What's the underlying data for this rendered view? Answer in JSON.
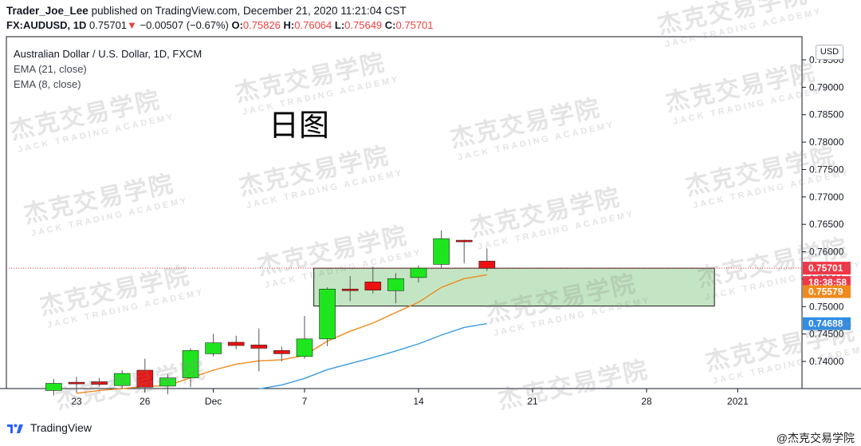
{
  "header": {
    "author": "Trader_Joe_Lee",
    "published_text": "published on TradingView.com, December 21, 2020 11:21:04 CST",
    "symbol": "FX:AUDUSD, 1D",
    "last": "0.75701",
    "change": "−0.00507 (−0.67%)",
    "o_label": "O:",
    "o": "0.75826",
    "h_label": "H:",
    "h": "0.76064",
    "l_label": "L:",
    "l": "0.75649",
    "c_label": "C:",
    "c": "0.75701"
  },
  "legend": {
    "main": "Australian Dollar / U.S. Dollar, 1D, FXCM",
    "ema21": "EMA (21, close)",
    "ema8": "EMA (8, close)"
  },
  "annotation": "日图",
  "currency": "USD",
  "price_tags": {
    "last": "0.75701",
    "countdown": "18:38:58",
    "ema8": "0.75579",
    "ema21": "0.74688"
  },
  "footer": {
    "brand": "TradingView",
    "credit": "@杰克交易学院"
  },
  "watermark": {
    "cn": "杰克交易学院",
    "en": "JACK TRADING ACADEMY"
  },
  "colors": {
    "up": "#1ee61e",
    "down": "#ee1111",
    "ema8": "#f0891c",
    "ema21": "#3a9be0",
    "zone_fill": "#b9e0b9",
    "zone_border": "#1a1a1a",
    "tag_red": "#f23645",
    "tag_orange": "#f0891c",
    "tag_blue": "#2f8de4",
    "tick": "#131722"
  },
  "chart_data": {
    "type": "candlestick",
    "y_ticks": [
      "0.79500",
      "0.79000",
      "0.78500",
      "0.78000",
      "0.77500",
      "0.77000",
      "0.76500",
      "0.76000",
      "0.75500",
      "0.75000",
      "0.74500",
      "0.74000"
    ],
    "x_ticks": [
      "23",
      "26",
      "Dec",
      "7",
      "14",
      "21",
      "28",
      "2021"
    ],
    "ylim": [
      0.7355,
      0.7965
    ],
    "candles": [
      {
        "date": "2020-11-20",
        "o": 0.7347,
        "h": 0.7368,
        "l": 0.7338,
        "c": 0.736
      },
      {
        "date": "2020-11-23",
        "o": 0.7362,
        "h": 0.7372,
        "l": 0.7344,
        "c": 0.736
      },
      {
        "date": "2020-11-24",
        "o": 0.7363,
        "h": 0.737,
        "l": 0.7354,
        "c": 0.7358
      },
      {
        "date": "2020-11-25",
        "o": 0.7356,
        "h": 0.7384,
        "l": 0.735,
        "c": 0.7378
      },
      {
        "date": "2020-11-26",
        "o": 0.7384,
        "h": 0.7405,
        "l": 0.7349,
        "c": 0.7353
      },
      {
        "date": "2020-11-27",
        "o": 0.7355,
        "h": 0.7377,
        "l": 0.734,
        "c": 0.737
      },
      {
        "date": "2020-11-30",
        "o": 0.737,
        "h": 0.7424,
        "l": 0.7353,
        "c": 0.742
      },
      {
        "date": "2020-12-01",
        "o": 0.7414,
        "h": 0.745,
        "l": 0.7409,
        "c": 0.7434
      },
      {
        "date": "2020-12-02",
        "o": 0.7435,
        "h": 0.7447,
        "l": 0.7422,
        "c": 0.7429
      },
      {
        "date": "2020-12-03",
        "o": 0.743,
        "h": 0.746,
        "l": 0.7382,
        "c": 0.7424
      },
      {
        "date": "2020-12-04",
        "o": 0.742,
        "h": 0.7427,
        "l": 0.74,
        "c": 0.7414
      },
      {
        "date": "2020-12-07",
        "o": 0.7409,
        "h": 0.7483,
        "l": 0.7405,
        "c": 0.7441
      },
      {
        "date": "2020-12-08",
        "o": 0.7441,
        "h": 0.7535,
        "l": 0.7428,
        "c": 0.7532
      },
      {
        "date": "2020-12-09",
        "o": 0.7532,
        "h": 0.7556,
        "l": 0.751,
        "c": 0.7531
      },
      {
        "date": "2020-12-10",
        "o": 0.7545,
        "h": 0.7573,
        "l": 0.7524,
        "c": 0.753
      },
      {
        "date": "2020-12-11",
        "o": 0.7529,
        "h": 0.7561,
        "l": 0.7506,
        "c": 0.7551
      },
      {
        "date": "2020-12-14",
        "o": 0.7553,
        "h": 0.7575,
        "l": 0.7544,
        "c": 0.757
      },
      {
        "date": "2020-12-15",
        "o": 0.7577,
        "h": 0.7639,
        "l": 0.7571,
        "c": 0.7624
      },
      {
        "date": "2020-12-16",
        "o": 0.7621,
        "h": 0.7622,
        "l": 0.7579,
        "c": 0.762
      },
      {
        "date": "2020-12-17",
        "o": 0.7583,
        "h": 0.7606,
        "l": 0.7565,
        "c": 0.757
      }
    ],
    "ema8": [
      {
        "date": "2020-11-23",
        "v": 0.7342
      },
      {
        "date": "2020-11-24",
        "v": 0.7347
      },
      {
        "date": "2020-11-26",
        "v": 0.7354
      },
      {
        "date": "2020-11-27",
        "v": 0.7356
      },
      {
        "date": "2020-11-30",
        "v": 0.737
      },
      {
        "date": "2020-12-01",
        "v": 0.7384
      },
      {
        "date": "2020-12-02",
        "v": 0.7395
      },
      {
        "date": "2020-12-03",
        "v": 0.7401
      },
      {
        "date": "2020-12-04",
        "v": 0.7403
      },
      {
        "date": "2020-12-07",
        "v": 0.7411
      },
      {
        "date": "2020-12-08",
        "v": 0.7437
      },
      {
        "date": "2020-12-09",
        "v": 0.7455
      },
      {
        "date": "2020-12-10",
        "v": 0.747
      },
      {
        "date": "2020-12-11",
        "v": 0.7489
      },
      {
        "date": "2020-12-14",
        "v": 0.7508
      },
      {
        "date": "2020-12-15",
        "v": 0.7535
      },
      {
        "date": "2020-12-16",
        "v": 0.7551
      },
      {
        "date": "2020-12-17",
        "v": 0.7558
      }
    ],
    "ema21": [
      {
        "date": "2020-12-03",
        "v": 0.735
      },
      {
        "date": "2020-12-04",
        "v": 0.7357
      },
      {
        "date": "2020-12-07",
        "v": 0.7369
      },
      {
        "date": "2020-12-08",
        "v": 0.7385
      },
      {
        "date": "2020-12-09",
        "v": 0.7396
      },
      {
        "date": "2020-12-10",
        "v": 0.7407
      },
      {
        "date": "2020-12-11",
        "v": 0.7419
      },
      {
        "date": "2020-12-14",
        "v": 0.7432
      },
      {
        "date": "2020-12-15",
        "v": 0.7448
      },
      {
        "date": "2020-12-16",
        "v": 0.7462
      },
      {
        "date": "2020-12-17",
        "v": 0.7469
      }
    ],
    "zone": {
      "from": "2020-12-08",
      "to": "2020-12-30",
      "top": 0.757,
      "bottom": 0.7501
    },
    "last_price_line": 0.75701
  }
}
